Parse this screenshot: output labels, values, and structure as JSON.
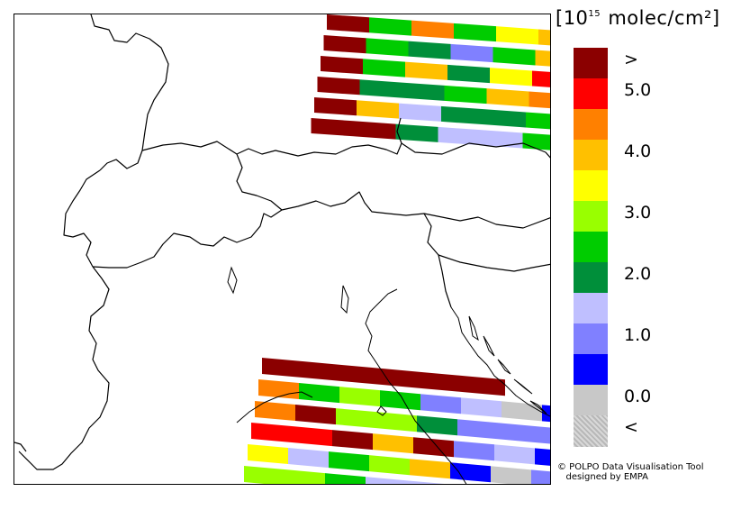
{
  "legend": {
    "units_prefix": "[10",
    "units_exp": "15",
    "units_suffix": " molec/cm²]",
    "bins": [
      {
        "color": "#8b0000",
        "label": ">"
      },
      {
        "color": "#ff0000",
        "label": "5.0"
      },
      {
        "color": "#ff8000",
        "label": ""
      },
      {
        "color": "#ffc000",
        "label": "4.0"
      },
      {
        "color": "#ffff00",
        "label": ""
      },
      {
        "color": "#99ff00",
        "label": "3.0"
      },
      {
        "color": "#00cc00",
        "label": ""
      },
      {
        "color": "#008f3a",
        "label": "2.0"
      },
      {
        "color": "#bfbfff",
        "label": ""
      },
      {
        "color": "#8080ff",
        "label": "1.0"
      },
      {
        "color": "#0000ff",
        "label": ""
      },
      {
        "color": "#c8c8c8",
        "label": "0.0"
      },
      {
        "color": "#ffffff",
        "label": "<"
      }
    ]
  },
  "credit_line1": "© POLPO Data Visualisation Tool",
  "credit_line2": "   designed by EMPA",
  "swaths": {
    "north": [
      [
        "#8b0000",
        "#00cc00",
        "#ff8000",
        "#00cc00",
        "#ffff00",
        "#ffc000"
      ],
      [
        "#8b0000",
        "#00cc00",
        "#008f3a",
        "#8080ff",
        "#00cc00",
        "#ffc000"
      ],
      [
        "#8b0000",
        "#00cc00",
        "#ffc000",
        "#008f3a",
        "#ffff00",
        "#ff0000"
      ],
      [
        "#8b0000",
        "#008f3a",
        "#008f3a",
        "#00cc00",
        "#ffc000",
        "#ff8000"
      ],
      [
        "#8b0000",
        "#ffc000",
        "#bfbfff",
        "#008f3a",
        "#008f3a",
        "#00cc00"
      ],
      [
        "#8b0000",
        "#8b0000",
        "#008f3a",
        "#bfbfff",
        "#bfbfff",
        "#00cc00"
      ]
    ],
    "south": [
      [
        "#8b0000",
        "#8b0000",
        "#8b0000",
        "#8b0000",
        "#8b0000",
        "#8b0000"
      ],
      [
        "#ff8000",
        "#00cc00",
        "#99ff00",
        "#00cc00",
        "#8080ff",
        "#bfbfff",
        "#c8c8c8",
        "#0000ff"
      ],
      [
        "#ff8000",
        "#8b0000",
        "#99ff00",
        "#99ff00",
        "#008f3a",
        "#8080ff",
        "#8080ff",
        "#8080ff"
      ],
      [
        "#ff0000",
        "#ff0000",
        "#8b0000",
        "#ffc000",
        "#8b0000",
        "#8080ff",
        "#bfbfff",
        "#0000ff"
      ],
      [
        "#ffff00",
        "#bfbfff",
        "#00cc00",
        "#99ff00",
        "#ffc000",
        "#0000ff",
        "#c8c8c8",
        "#8080ff"
      ],
      [
        "#99ff00",
        "#99ff00",
        "#00cc00",
        "#bfbfff",
        "#bfbfff",
        "#c8c8c8",
        "#8080ff",
        "#8080ff"
      ]
    ]
  }
}
